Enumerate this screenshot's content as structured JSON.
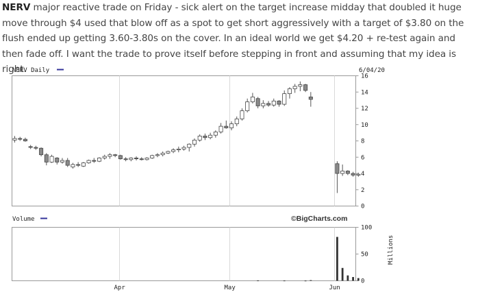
{
  "post": {
    "ticker": "NERV",
    "body": " major reactive trade on Friday - sick alert on the target increase midday that doubled it huge move through $4 used that blow off as a spot to get short aggressively with a target of $3.80 on the flush ended up getting 3.60-3.80s on the cover. In an ideal world we get $4.20 + re-test again and then fade off. I want the trade to prove itself before stepping in front and assuming that my idea is right."
  },
  "chart_data": [
    {
      "type": "candlestick",
      "title": "NERV Daily",
      "date": "6/04/20",
      "source": "©BigCharts.com",
      "ylim": [
        0,
        16
      ],
      "yticks": [
        "0",
        "2",
        "4",
        "6",
        "8",
        "10",
        "12",
        "14",
        "16"
      ],
      "x_labels": [
        "Apr",
        "May",
        "Jun"
      ],
      "legend_color": "#333399",
      "candles": [
        {
          "o": 8.1,
          "h": 8.6,
          "l": 7.8,
          "c": 8.3
        },
        {
          "o": 8.3,
          "h": 8.5,
          "l": 8.0,
          "c": 8.2
        },
        {
          "o": 8.2,
          "h": 8.4,
          "l": 7.9,
          "c": 8.0
        },
        {
          "o": 7.3,
          "h": 7.5,
          "l": 7.0,
          "c": 7.2
        },
        {
          "o": 7.2,
          "h": 7.4,
          "l": 6.9,
          "c": 7.1
        },
        {
          "o": 7.1,
          "h": 7.2,
          "l": 6.1,
          "c": 6.3
        },
        {
          "o": 6.3,
          "h": 6.5,
          "l": 5.0,
          "c": 5.4
        },
        {
          "o": 5.4,
          "h": 6.3,
          "l": 5.3,
          "c": 6.1
        },
        {
          "o": 5.9,
          "h": 6.0,
          "l": 5.1,
          "c": 5.4
        },
        {
          "o": 5.4,
          "h": 5.9,
          "l": 5.2,
          "c": 5.6
        },
        {
          "o": 5.6,
          "h": 5.9,
          "l": 4.8,
          "c": 5.0
        },
        {
          "o": 4.8,
          "h": 5.3,
          "l": 4.6,
          "c": 5.1
        },
        {
          "o": 5.1,
          "h": 5.4,
          "l": 4.8,
          "c": 5.0
        },
        {
          "o": 4.9,
          "h": 5.4,
          "l": 4.8,
          "c": 5.3
        },
        {
          "o": 5.3,
          "h": 5.7,
          "l": 5.2,
          "c": 5.6
        },
        {
          "o": 5.6,
          "h": 5.9,
          "l": 5.3,
          "c": 5.5
        },
        {
          "o": 5.5,
          "h": 6.0,
          "l": 5.4,
          "c": 5.9
        },
        {
          "o": 5.9,
          "h": 6.3,
          "l": 5.7,
          "c": 6.1
        },
        {
          "o": 6.1,
          "h": 6.5,
          "l": 5.8,
          "c": 6.3
        },
        {
          "o": 6.3,
          "h": 6.4,
          "l": 6.0,
          "c": 6.2
        },
        {
          "o": 6.2,
          "h": 6.3,
          "l": 5.7,
          "c": 5.8
        },
        {
          "o": 5.8,
          "h": 6.0,
          "l": 5.5,
          "c": 5.7
        },
        {
          "o": 5.7,
          "h": 6.0,
          "l": 5.5,
          "c": 5.9
        },
        {
          "o": 5.9,
          "h": 6.1,
          "l": 5.6,
          "c": 5.8
        },
        {
          "o": 5.8,
          "h": 6.0,
          "l": 5.6,
          "c": 5.7
        },
        {
          "o": 5.7,
          "h": 6.0,
          "l": 5.6,
          "c": 5.9
        },
        {
          "o": 5.9,
          "h": 6.3,
          "l": 5.8,
          "c": 6.2
        },
        {
          "o": 6.2,
          "h": 6.5,
          "l": 6.0,
          "c": 6.3
        },
        {
          "o": 6.3,
          "h": 6.7,
          "l": 6.1,
          "c": 6.5
        },
        {
          "o": 6.5,
          "h": 6.8,
          "l": 6.4,
          "c": 6.7
        },
        {
          "o": 6.7,
          "h": 7.1,
          "l": 6.5,
          "c": 6.9
        },
        {
          "o": 6.9,
          "h": 7.3,
          "l": 6.6,
          "c": 7.0
        },
        {
          "o": 7.0,
          "h": 7.4,
          "l": 6.8,
          "c": 7.2
        },
        {
          "o": 7.2,
          "h": 7.7,
          "l": 6.7,
          "c": 7.6
        },
        {
          "o": 7.6,
          "h": 8.3,
          "l": 7.3,
          "c": 8.1
        },
        {
          "o": 8.1,
          "h": 8.8,
          "l": 7.9,
          "c": 8.6
        },
        {
          "o": 8.6,
          "h": 8.9,
          "l": 8.1,
          "c": 8.4
        },
        {
          "o": 8.4,
          "h": 9.0,
          "l": 8.2,
          "c": 8.7
        },
        {
          "o": 8.7,
          "h": 9.3,
          "l": 8.4,
          "c": 9.1
        },
        {
          "o": 9.1,
          "h": 10.2,
          "l": 8.9,
          "c": 9.8
        },
        {
          "o": 9.8,
          "h": 10.5,
          "l": 9.5,
          "c": 9.6
        },
        {
          "o": 9.6,
          "h": 10.4,
          "l": 9.3,
          "c": 10.1
        },
        {
          "o": 10.1,
          "h": 11.0,
          "l": 9.8,
          "c": 10.7
        },
        {
          "o": 10.7,
          "h": 12.0,
          "l": 10.5,
          "c": 11.7
        },
        {
          "o": 11.7,
          "h": 13.2,
          "l": 11.5,
          "c": 12.8
        },
        {
          "o": 12.8,
          "h": 13.9,
          "l": 12.6,
          "c": 13.4
        },
        {
          "o": 13.2,
          "h": 13.4,
          "l": 12.0,
          "c": 12.3
        },
        {
          "o": 12.3,
          "h": 13.0,
          "l": 12.0,
          "c": 12.6
        },
        {
          "o": 12.6,
          "h": 12.9,
          "l": 12.2,
          "c": 12.4
        },
        {
          "o": 12.4,
          "h": 13.2,
          "l": 12.2,
          "c": 12.9
        },
        {
          "o": 12.9,
          "h": 13.0,
          "l": 12.2,
          "c": 12.5
        },
        {
          "o": 12.5,
          "h": 14.2,
          "l": 12.3,
          "c": 13.8
        },
        {
          "o": 13.8,
          "h": 14.6,
          "l": 13.2,
          "c": 14.4
        },
        {
          "o": 14.4,
          "h": 15.0,
          "l": 13.9,
          "c": 14.7
        },
        {
          "o": 14.7,
          "h": 15.3,
          "l": 14.1,
          "c": 14.9
        },
        {
          "o": 14.9,
          "h": 15.0,
          "l": 14.0,
          "c": 14.2
        },
        {
          "o": 13.4,
          "h": 14.0,
          "l": 12.2,
          "c": 13.1
        },
        null,
        null,
        null,
        null,
        {
          "o": 5.2,
          "h": 5.5,
          "l": 1.6,
          "c": 4.0
        },
        {
          "o": 4.0,
          "h": 5.1,
          "l": 3.7,
          "c": 4.3
        },
        {
          "o": 4.3,
          "h": 4.4,
          "l": 3.8,
          "c": 4.0
        },
        {
          "o": 4.0,
          "h": 4.2,
          "l": 3.6,
          "c": 3.8
        },
        {
          "o": 3.8,
          "h": 4.1,
          "l": 3.6,
          "c": 3.9
        }
      ]
    },
    {
      "type": "bar",
      "title": "Volume",
      "units": "Millions",
      "ylim": [
        0,
        100
      ],
      "yticks": [
        "0",
        "50",
        "100"
      ],
      "values": [
        0,
        0,
        0,
        0,
        0,
        0,
        0,
        0,
        0,
        0,
        0,
        0,
        0,
        0,
        0,
        0,
        0,
        0,
        0,
        0,
        0,
        0,
        0,
        0,
        0,
        0,
        0,
        0,
        0,
        0,
        0,
        0,
        0,
        0,
        0,
        0,
        0,
        0,
        0,
        0,
        0,
        0,
        0,
        0,
        0,
        0,
        0.6,
        0,
        0,
        0,
        0,
        0.5,
        0,
        0,
        0,
        0.4,
        1.2,
        0,
        0,
        0,
        0,
        82,
        24,
        10,
        7,
        5
      ]
    }
  ]
}
